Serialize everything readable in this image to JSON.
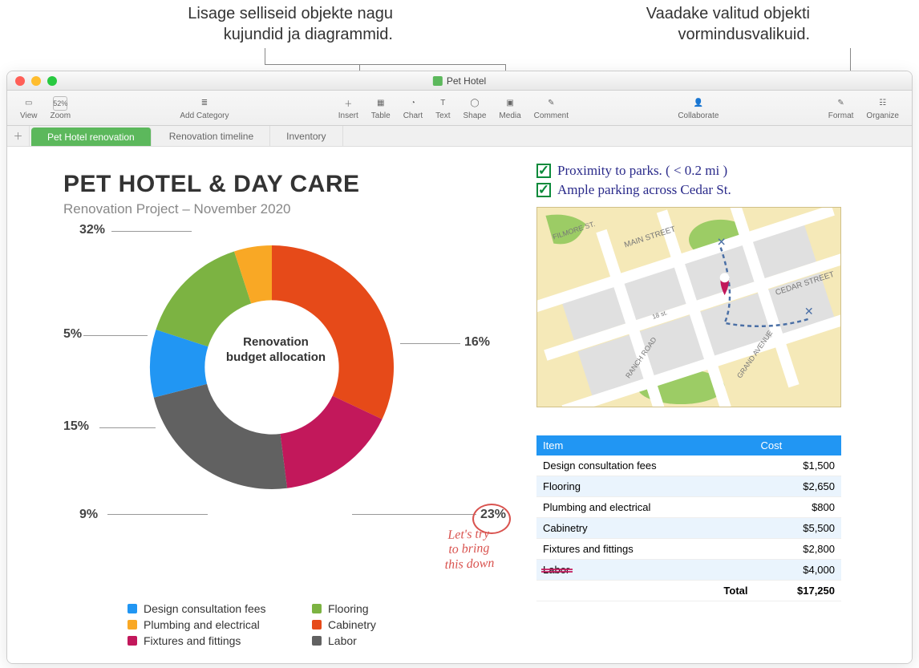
{
  "callouts": {
    "left": "Lisage selliseid objekte nagu\nkujundid ja diagrammid.",
    "right": "Vaadake valitud objekti\nvormindusvalikuid."
  },
  "window": {
    "title": "Pet Hotel"
  },
  "toolbar": {
    "view": "View",
    "zoom_value": "52%",
    "zoom": "Zoom",
    "add_category": "Add Category",
    "insert": "Insert",
    "table": "Table",
    "chart": "Chart",
    "text": "Text",
    "shape": "Shape",
    "media": "Media",
    "comment": "Comment",
    "collaborate": "Collaborate",
    "format": "Format",
    "organize": "Organize"
  },
  "tabs": {
    "t1": "Pet Hotel renovation",
    "t2": "Renovation timeline",
    "t3": "Inventory"
  },
  "doc": {
    "title": "PET HOTEL & DAY CARE",
    "subtitle": "Renovation Project – November 2020",
    "donut_center": "Renovation budget allocation"
  },
  "chart": {
    "type": "donut",
    "inner_ratio": 0.55,
    "slices": [
      {
        "label": "Design consultation fees",
        "value": 9,
        "color": "#2196f3"
      },
      {
        "label": "Flooring",
        "value": 15,
        "color": "#7cb342"
      },
      {
        "label": "Plumbing and electrical",
        "value": 5,
        "color": "#f9a825"
      },
      {
        "label": "Cabinetry",
        "value": 32,
        "color": "#e64a19"
      },
      {
        "label": "Fixtures and fittings",
        "value": 16,
        "color": "#c2185b"
      },
      {
        "label": "Labor",
        "value": 23,
        "color": "#616161"
      }
    ],
    "percent_labels": {
      "p32": "32%",
      "p5": "5%",
      "p16": "16%",
      "p15": "15%",
      "p9": "9%",
      "p23": "23%"
    }
  },
  "checklist": {
    "c1": "Proximity to parks. ( < 0.2 mi )",
    "c2": "Ample parking across  Cedar St."
  },
  "map": {
    "streets": [
      "FILMORE ST.",
      "MAIN STREET",
      "CEDAR STREET",
      "RANCH ROAD",
      "GRAND AVENUE",
      "18 st."
    ],
    "bg": "#f5e9b8",
    "road": "#ffffff",
    "park": "#9ccc65",
    "block": "#e0e0e0",
    "pin": "#c2185b",
    "trail": "#4a6fa5"
  },
  "table": {
    "headers": {
      "item": "Item",
      "cost": "Cost"
    },
    "rows": [
      {
        "item": "Design consultation fees",
        "cost": "$1,500"
      },
      {
        "item": "Flooring",
        "cost": "$2,650"
      },
      {
        "item": "Plumbing and electrical",
        "cost": "$800"
      },
      {
        "item": "Cabinetry",
        "cost": "$5,500"
      },
      {
        "item": "Fixtures and fittings",
        "cost": "$2,800"
      },
      {
        "item": "Labor",
        "cost": "$4,000"
      }
    ],
    "total_label": "Total",
    "total_value": "$17,250"
  },
  "hand": {
    "note": "Let's try\nto bring\nthis down"
  }
}
